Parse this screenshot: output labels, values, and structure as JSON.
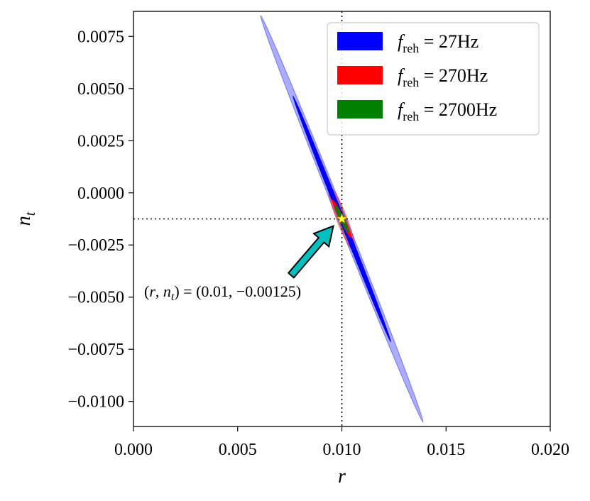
{
  "chart_data": {
    "type": "contour-ellipses",
    "xlabel": "r",
    "ylabel": "n_t",
    "xlim": [
      0.0,
      0.02
    ],
    "ylim": [
      -0.0112,
      0.0087
    ],
    "xticks": [
      "0.000",
      "0.005",
      "0.010",
      "0.015",
      "0.020"
    ],
    "xtick_values": [
      0.0,
      0.005,
      0.01,
      0.015,
      0.02
    ],
    "yticks": [
      "0.0075",
      "0.0050",
      "0.0025",
      "0.0000",
      "−0.0025",
      "−0.0050",
      "−0.0075",
      "−0.0100"
    ],
    "ytick_values": [
      0.0075,
      0.005,
      0.0025,
      0.0,
      -0.0025,
      -0.005,
      -0.0075,
      -0.01
    ],
    "fiducial": {
      "r": 0.01,
      "n_t": -0.00125,
      "label": "(r, n_t) = (0.01, −0.00125)"
    },
    "legend_placement": "top-right",
    "series": [
      {
        "name": "f_reh = 27Hz",
        "legend_main": "f",
        "legend_sub": "reh",
        "legend_value": " = 27Hz",
        "color": "#0000ff",
        "ellipses": [
          {
            "sigma": 1,
            "endpoints": [
              [
                0.00765,
                0.00465
              ],
              [
                0.01235,
                -0.00715
              ]
            ],
            "half_width": 0.00011
          },
          {
            "sigma": 2,
            "endpoints": [
              [
                0.0061,
                0.0085
              ],
              [
                0.0139,
                -0.011
              ]
            ],
            "half_width": 0.0002
          }
        ]
      },
      {
        "name": "f_reh = 270Hz",
        "legend_main": "f",
        "legend_sub": "reh",
        "legend_value": " = 270Hz",
        "color": "#ff0000",
        "ellipses": [
          {
            "sigma": 1,
            "endpoints": [
              [
                0.00955,
                -0.00035
              ],
              [
                0.01045,
                -0.00215
              ]
            ],
            "half_width": 0.0001
          },
          {
            "sigma": 2,
            "endpoints": [
              [
                0.0094,
                0.0003
              ],
              [
                0.0106,
                -0.0028
              ]
            ],
            "half_width": 0.00025
          }
        ]
      },
      {
        "name": "f_reh = 2700Hz",
        "legend_main": "f",
        "legend_sub": "reh",
        "legend_value": " = 2700Hz",
        "color": "#008000",
        "ellipses": [
          {
            "sigma": 1,
            "endpoints": [
              [
                0.00968,
                -0.0006
              ],
              [
                0.01032,
                -0.0019
              ]
            ],
            "half_width": 7e-05
          },
          {
            "sigma": 2,
            "endpoints": [
              [
                0.00955,
                -0.0001
              ],
              [
                0.01045,
                -0.0024
              ]
            ],
            "half_width": 0.00016
          }
        ]
      }
    ]
  }
}
